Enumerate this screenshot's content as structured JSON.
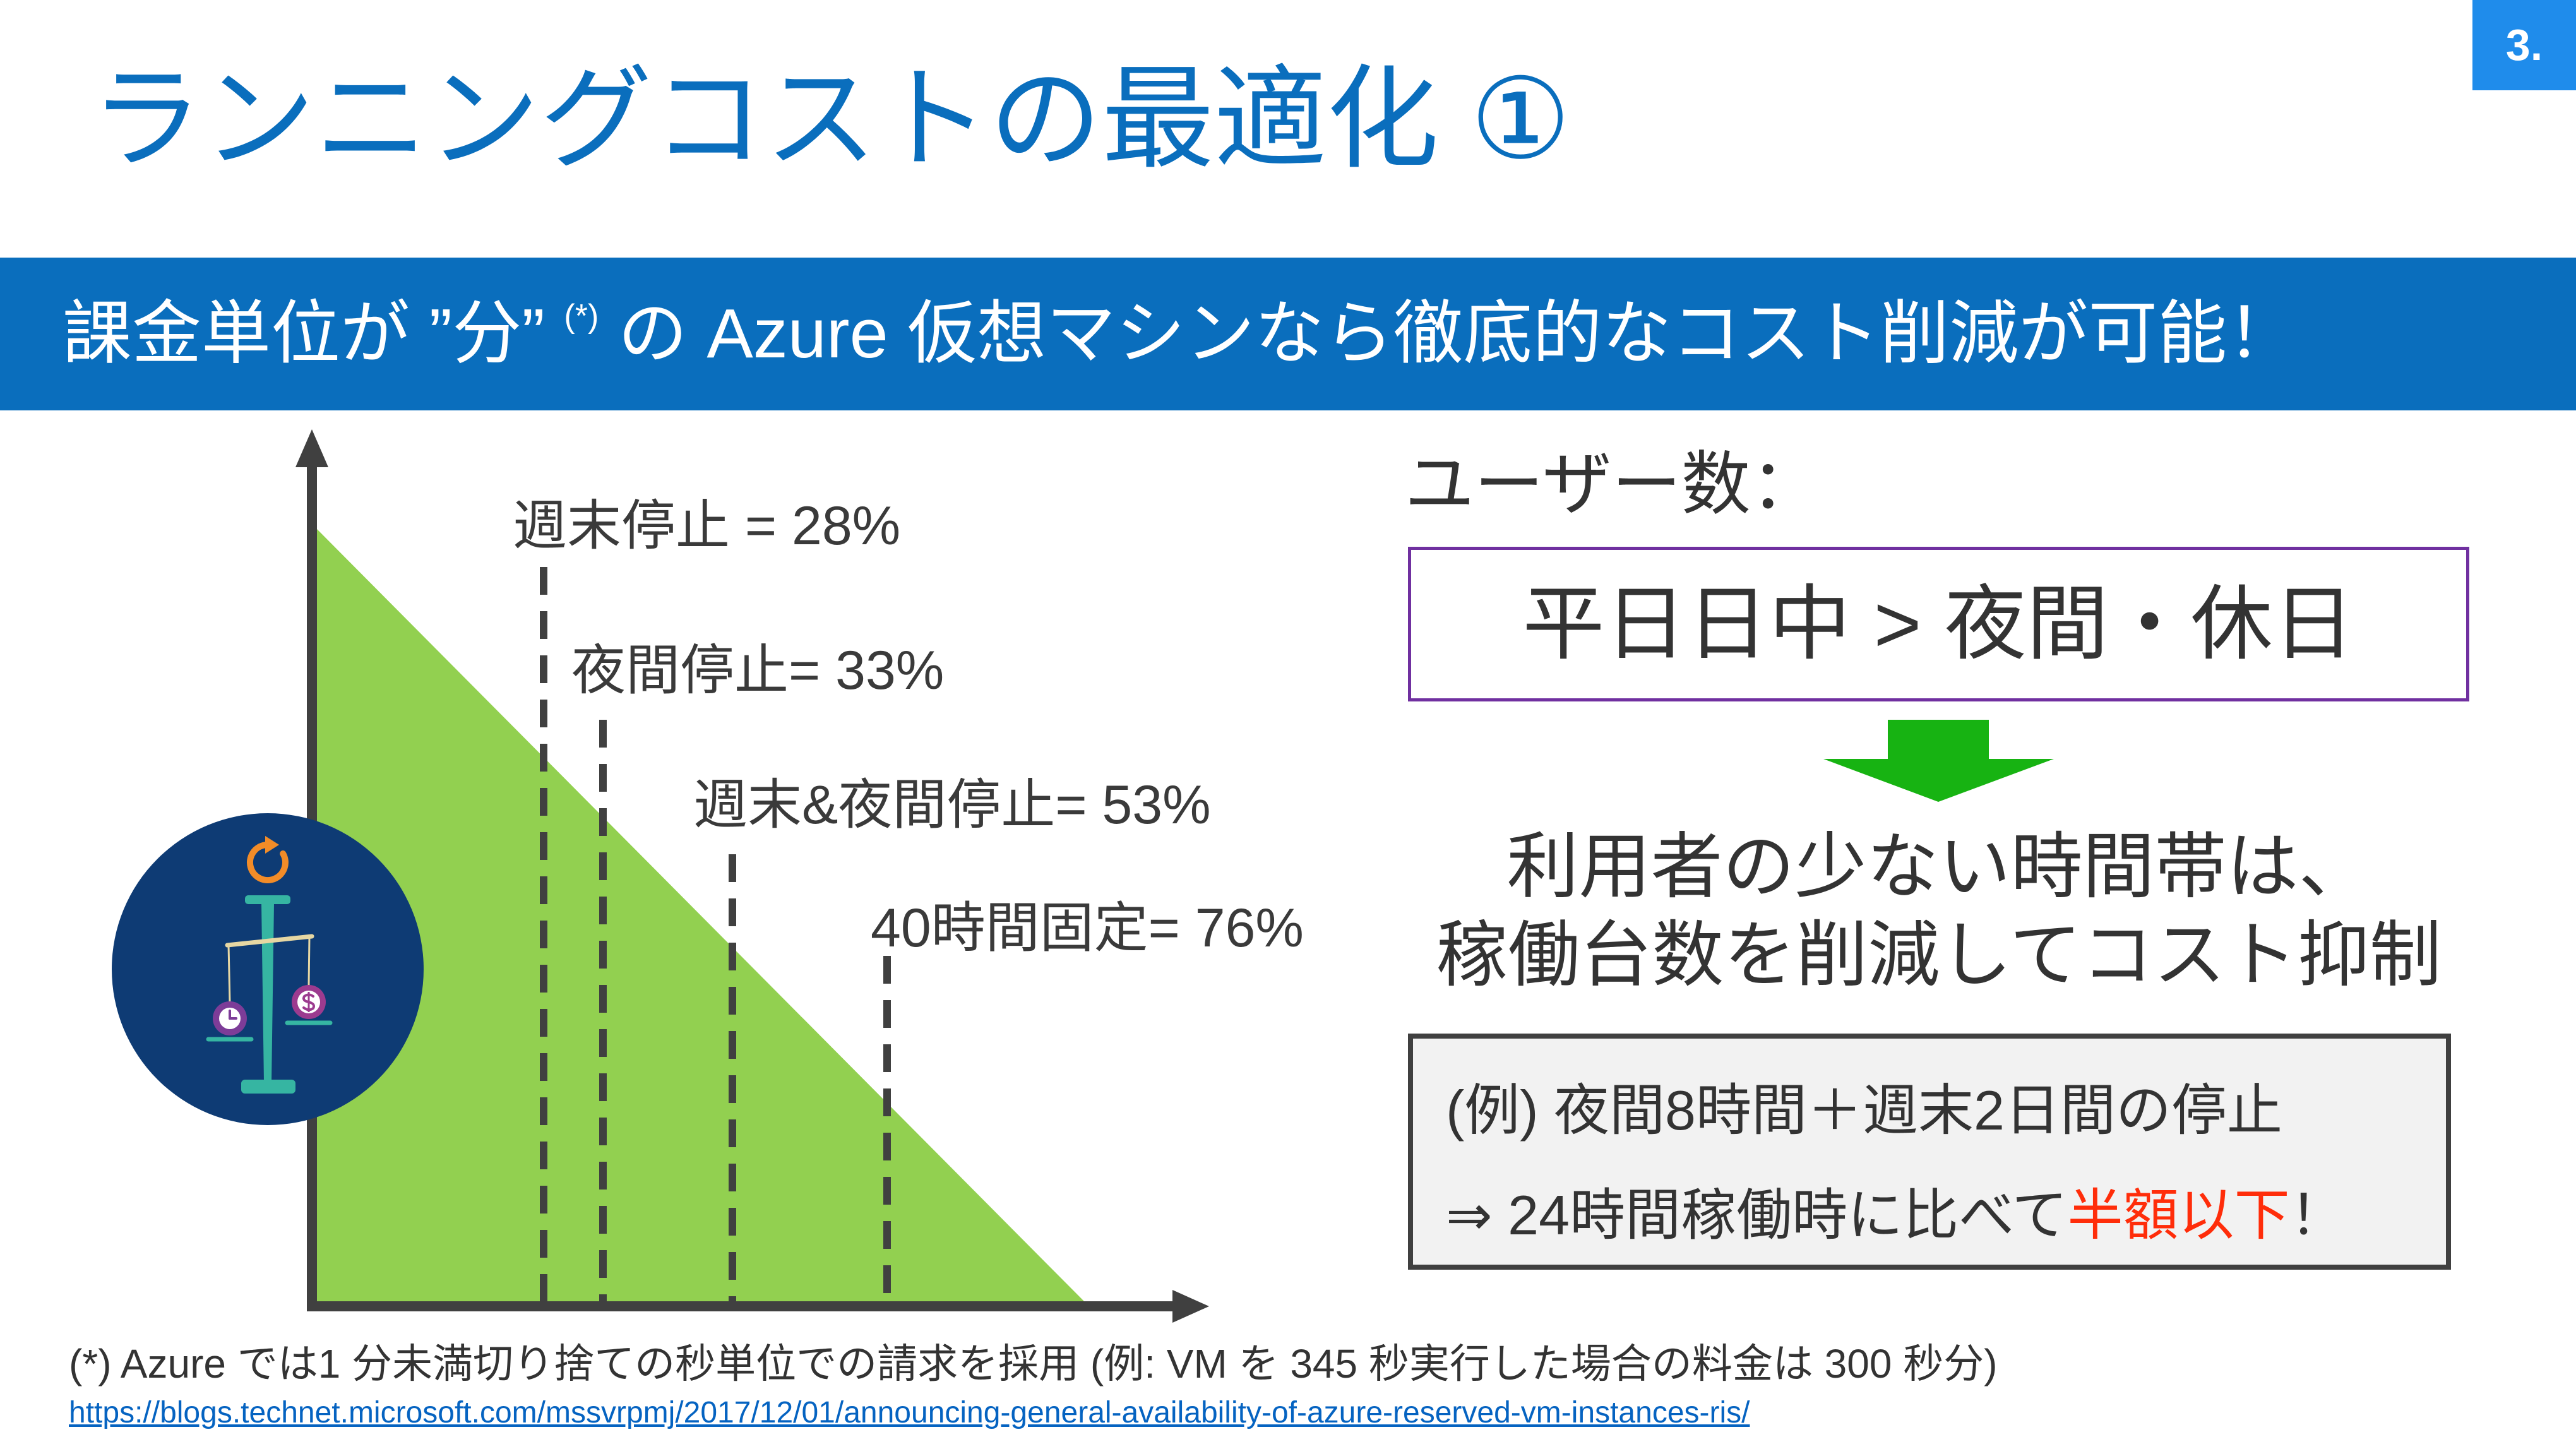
{
  "page_number": "3.",
  "title": "ランニングコストの最適化 ①",
  "banner": {
    "text_before": "課金単位が ”分” ",
    "footnote_mark": "(*)",
    "text_after": " の Azure 仮想マシンなら徹底的なコスト削減が可能！"
  },
  "chart": {
    "icon": "balance-scale-icon",
    "labels": [
      "週末停止 = 28%",
      "夜間停止= 33%",
      "週末&夜間停止= 53%",
      "40時間固定= 76%"
    ]
  },
  "users": {
    "heading": "ユーザー数：",
    "comparison": "平日日中 > 夜間・休日",
    "arrow_icon": "arrow-down-icon",
    "conclusion_lines": [
      "利用者の少ない時間帯は、",
      "稼働台数を削減してコスト抑制"
    ]
  },
  "example": {
    "line1": "(例) 夜間8時間＋週末2日間の停止",
    "line2_prefix": "⇒ 24時間稼働時に比べて",
    "line2_highlight": "半額以下",
    "line2_suffix": "！"
  },
  "footnote": {
    "text": "(*) Azure では1 分未満切り捨ての秒単位での請求を採用 (例: VM を 345 秒実行した場合の料金は 300 秒分)",
    "link": "https://blogs.technet.microsoft.com/mssvrpmj/2017/12/01/announcing-general-availability-of-azure-reserved-vm-instances-ris/"
  },
  "colors": {
    "accent": "#0a6ebd",
    "badge": "#1f8ceb",
    "savings_area": "#92d050",
    "axis": "#404040",
    "comparison_border": "#7030a0",
    "arrow": "#17b312",
    "highlight": "#ff2d0a",
    "icon_badge": "#0e3b74"
  }
}
